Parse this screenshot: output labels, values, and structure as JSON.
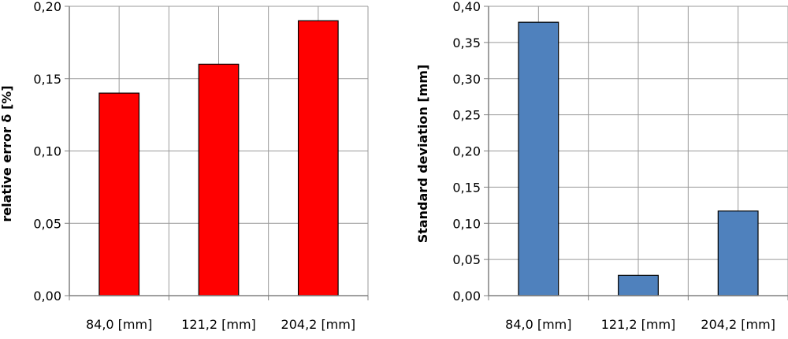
{
  "chart_data": [
    {
      "type": "bar",
      "categories": [
        "84,0 [mm]",
        "121,2 [mm]",
        "204,2 [mm]"
      ],
      "values": [
        0.14,
        0.16,
        0.19
      ],
      "ylabel": "relative error δ [%]",
      "ylim": [
        0,
        0.2
      ],
      "yticks": [
        "0,00",
        "0,05",
        "0,10",
        "0,15",
        "0,20"
      ],
      "ytick_values": [
        0,
        0.05,
        0.1,
        0.15,
        0.2
      ],
      "grid": true,
      "bar_color": "#ff0000"
    },
    {
      "type": "bar",
      "categories": [
        "84,0 [mm]",
        "121,2 [mm]",
        "204,2 [mm]"
      ],
      "values": [
        0.378,
        0.028,
        0.117
      ],
      "ylabel": "Standard deviation [mm]",
      "ylim": [
        0,
        0.4
      ],
      "yticks": [
        "0,00",
        "0,05",
        "0,10",
        "0,15",
        "0,20",
        "0,25",
        "0,30",
        "0,35",
        "0,40"
      ],
      "ytick_values": [
        0,
        0.05,
        0.1,
        0.15,
        0.2,
        0.25,
        0.3,
        0.35,
        0.4
      ],
      "grid": true,
      "bar_color": "#4f81bd"
    }
  ]
}
